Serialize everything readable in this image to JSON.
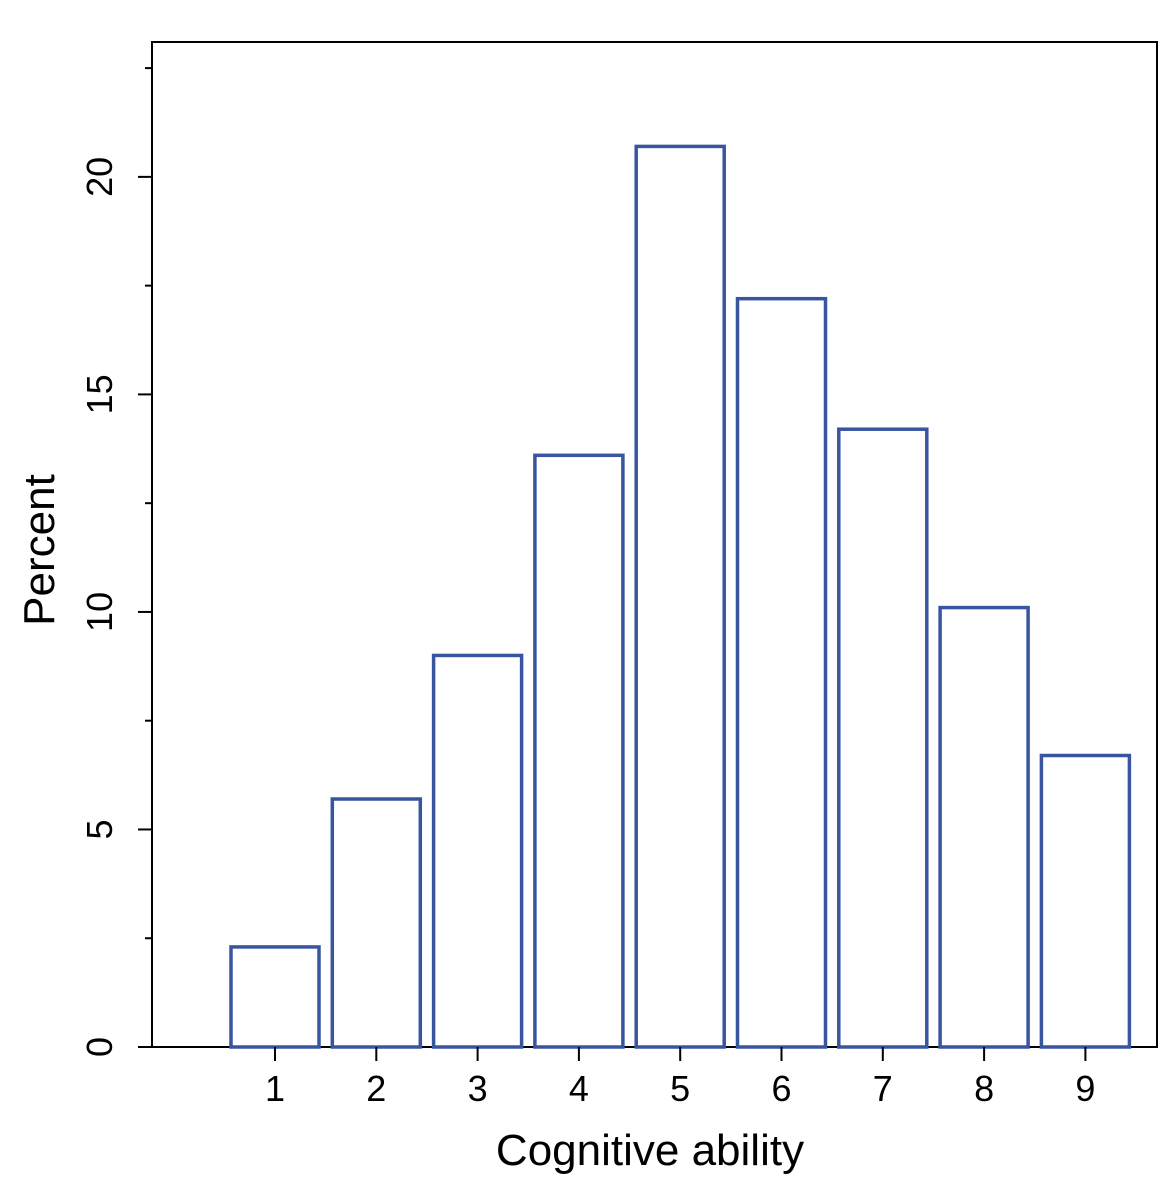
{
  "chart_data": {
    "type": "bar",
    "title": "",
    "xlabel": "Cognitive ability",
    "ylabel": "Percent",
    "categories": [
      "1",
      "2",
      "3",
      "4",
      "5",
      "6",
      "7",
      "8",
      "9"
    ],
    "values": [
      2.3,
      5.7,
      9.0,
      13.6,
      20.7,
      17.2,
      14.2,
      10.1,
      6.7
    ],
    "ylim": [
      0,
      23.1
    ],
    "yticks_major": [
      0,
      5,
      10,
      15,
      20
    ],
    "yticks_minor": [
      2.5,
      7.5,
      12.5,
      17.5,
      22.5
    ],
    "grid": false,
    "legend": "none",
    "bar_outline_color": "#3a55a0",
    "bar_fill_color": "#ffffff"
  }
}
